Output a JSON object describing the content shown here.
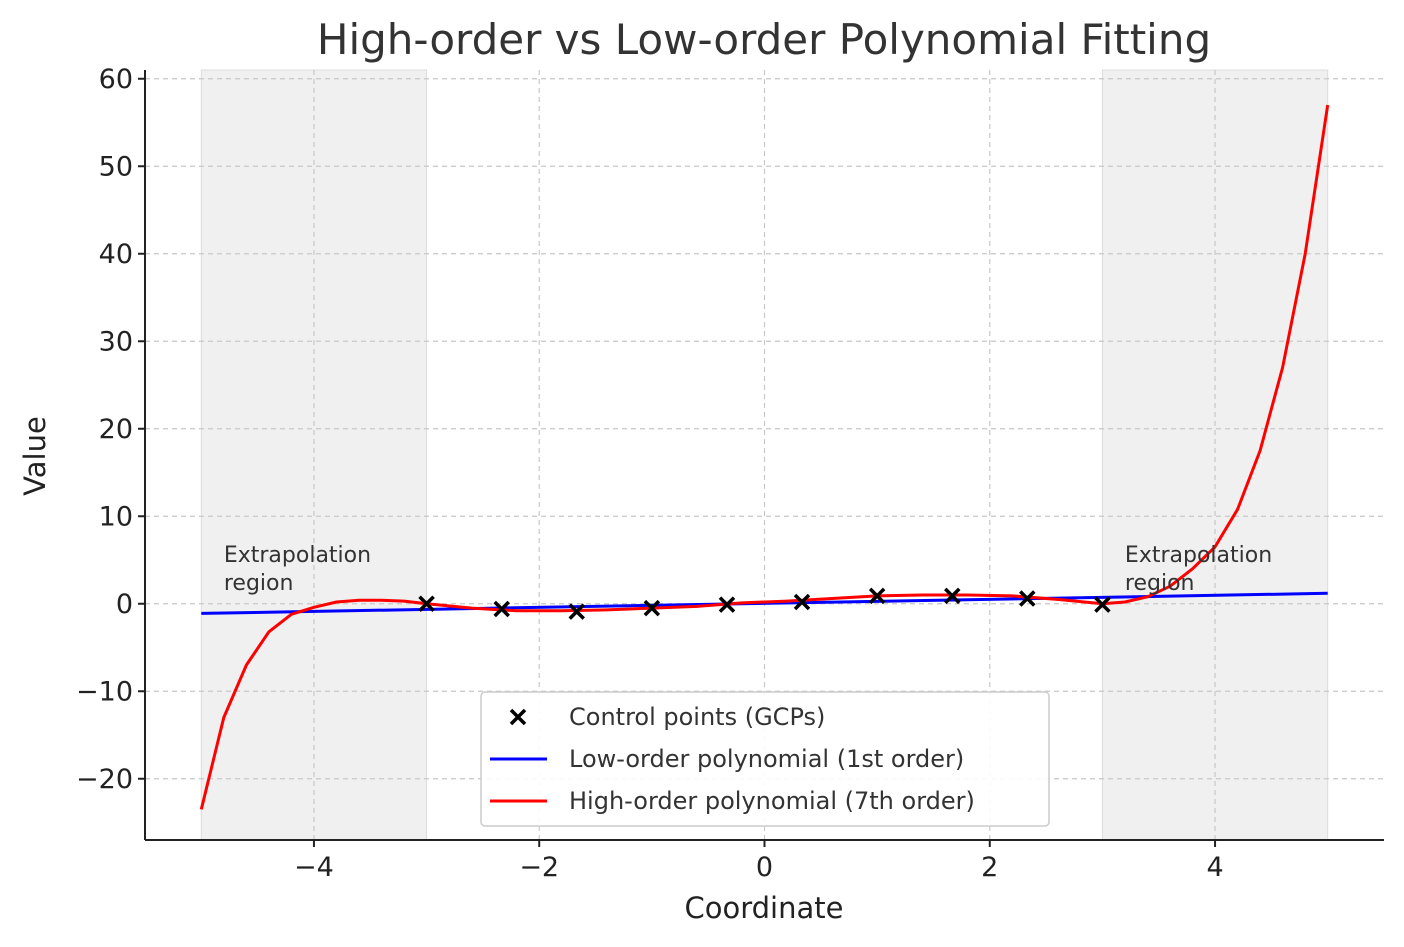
{
  "chart_data": {
    "type": "line",
    "title": "High-order vs Low-order Polynomial Fitting",
    "xlabel": "Coordinate",
    "ylabel": "Value",
    "xlim": [
      -5.5,
      5.5
    ],
    "ylim": [
      -27,
      61
    ],
    "xticks": [
      -4,
      -2,
      0,
      2,
      4
    ],
    "xtick_labels": [
      "−4",
      "−2",
      "0",
      "2",
      "4"
    ],
    "yticks": [
      -20,
      -10,
      0,
      10,
      20,
      30,
      40,
      50,
      60
    ],
    "ytick_labels": [
      "−20",
      "−10",
      "0",
      "10",
      "20",
      "30",
      "40",
      "50",
      "60"
    ],
    "grid": true,
    "legend_position": "bottom-center",
    "shaded_regions": [
      {
        "x": [
          -5,
          -3
        ],
        "label": "Extrapolation region"
      },
      {
        "x": [
          3,
          5
        ],
        "label": "Extrapolation region"
      }
    ],
    "annotations": [
      {
        "lines": [
          "Extrapolation",
          "region"
        ],
        "x": -4.8,
        "y": 2.5
      },
      {
        "lines": [
          "Extrapolation",
          "region"
        ],
        "x": 3.2,
        "y": 2.5
      }
    ],
    "series": [
      {
        "name": "Control points (GCPs)",
        "type": "scatter",
        "marker": "x",
        "color": "#000000",
        "x": [
          -3.0,
          -2.333,
          -1.667,
          -1.0,
          -0.333,
          0.333,
          1.0,
          1.667,
          2.333,
          3.0
        ],
        "y": [
          0.0,
          -0.6,
          -0.9,
          -0.5,
          -0.1,
          0.2,
          0.9,
          0.9,
          0.6,
          -0.1
        ]
      },
      {
        "name": "Low-order polynomial (1st order)",
        "type": "line",
        "color": "#0000ff",
        "x": [
          -5,
          5
        ],
        "y": [
          -1.1,
          1.2
        ]
      },
      {
        "name": "High-order polynomial (7th order)",
        "type": "line",
        "color": "#ff0000",
        "x": [
          -5.0,
          -4.8,
          -4.6,
          -4.4,
          -4.2,
          -4.0,
          -3.8,
          -3.6,
          -3.4,
          -3.2,
          -3.0,
          -2.6,
          -2.2,
          -1.8,
          -1.4,
          -1.0,
          -0.6,
          -0.2,
          0.2,
          0.6,
          1.0,
          1.4,
          1.8,
          2.2,
          2.6,
          3.0,
          3.2,
          3.4,
          3.6,
          3.8,
          4.0,
          4.2,
          4.4,
          4.6,
          4.8,
          5.0
        ],
        "y": [
          -23.5,
          -13.0,
          -7.0,
          -3.2,
          -1.2,
          -0.4,
          0.2,
          0.4,
          0.4,
          0.3,
          0.0,
          -0.5,
          -0.8,
          -0.8,
          -0.7,
          -0.5,
          -0.3,
          0.1,
          0.3,
          0.6,
          0.9,
          1.0,
          1.0,
          0.9,
          0.5,
          0.0,
          0.2,
          0.8,
          2.0,
          4.0,
          6.5,
          10.8,
          17.5,
          27.0,
          40.0,
          57.0
        ]
      }
    ]
  }
}
